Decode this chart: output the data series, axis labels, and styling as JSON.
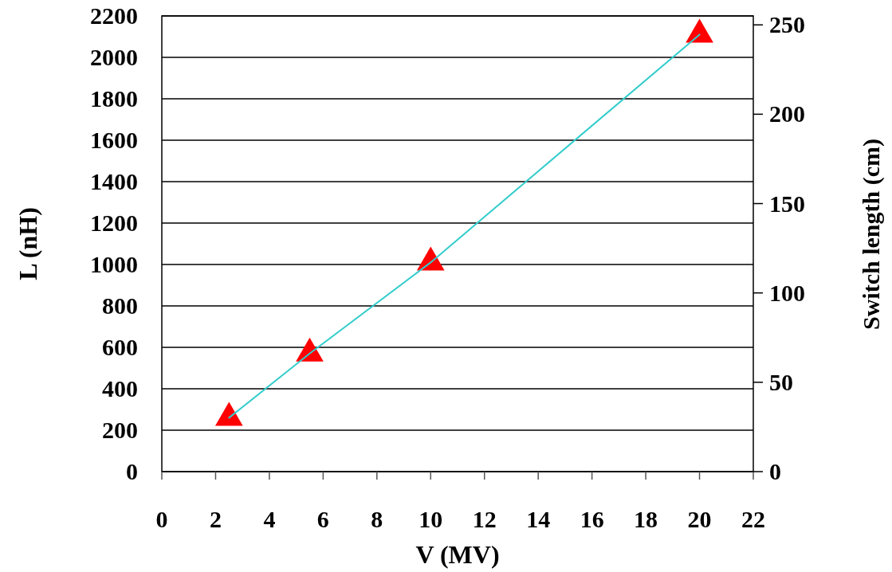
{
  "chart_data": {
    "type": "scatter",
    "xlabel": "V (MV)",
    "ylabel": "L (nH)",
    "y2label": "Switch length (cm)",
    "xlim": [
      0,
      22
    ],
    "xticks": [
      0,
      2,
      4,
      6,
      8,
      10,
      12,
      14,
      16,
      18,
      20,
      22
    ],
    "ylim": [
      0,
      2200
    ],
    "yticks": [
      0,
      200,
      400,
      600,
      800,
      1000,
      1200,
      1400,
      1600,
      1800,
      2000,
      2200
    ],
    "y2lim": [
      0,
      255
    ],
    "y2ticks": [
      0,
      50,
      100,
      150,
      200,
      250
    ],
    "grid": "y",
    "series": [
      {
        "type": "line",
        "color": "#33cccc",
        "marker": "none",
        "line_style": "solid",
        "x": [
          2.5,
          5.5,
          10,
          20
        ],
        "values": [
          260,
          570,
          1010,
          2110
        ]
      },
      {
        "color": "#ff0000",
        "marker": "triangle",
        "x": [
          2.5,
          5.5,
          10,
          20
        ],
        "values": [
          260,
          570,
          1010,
          2110
        ]
      }
    ]
  }
}
